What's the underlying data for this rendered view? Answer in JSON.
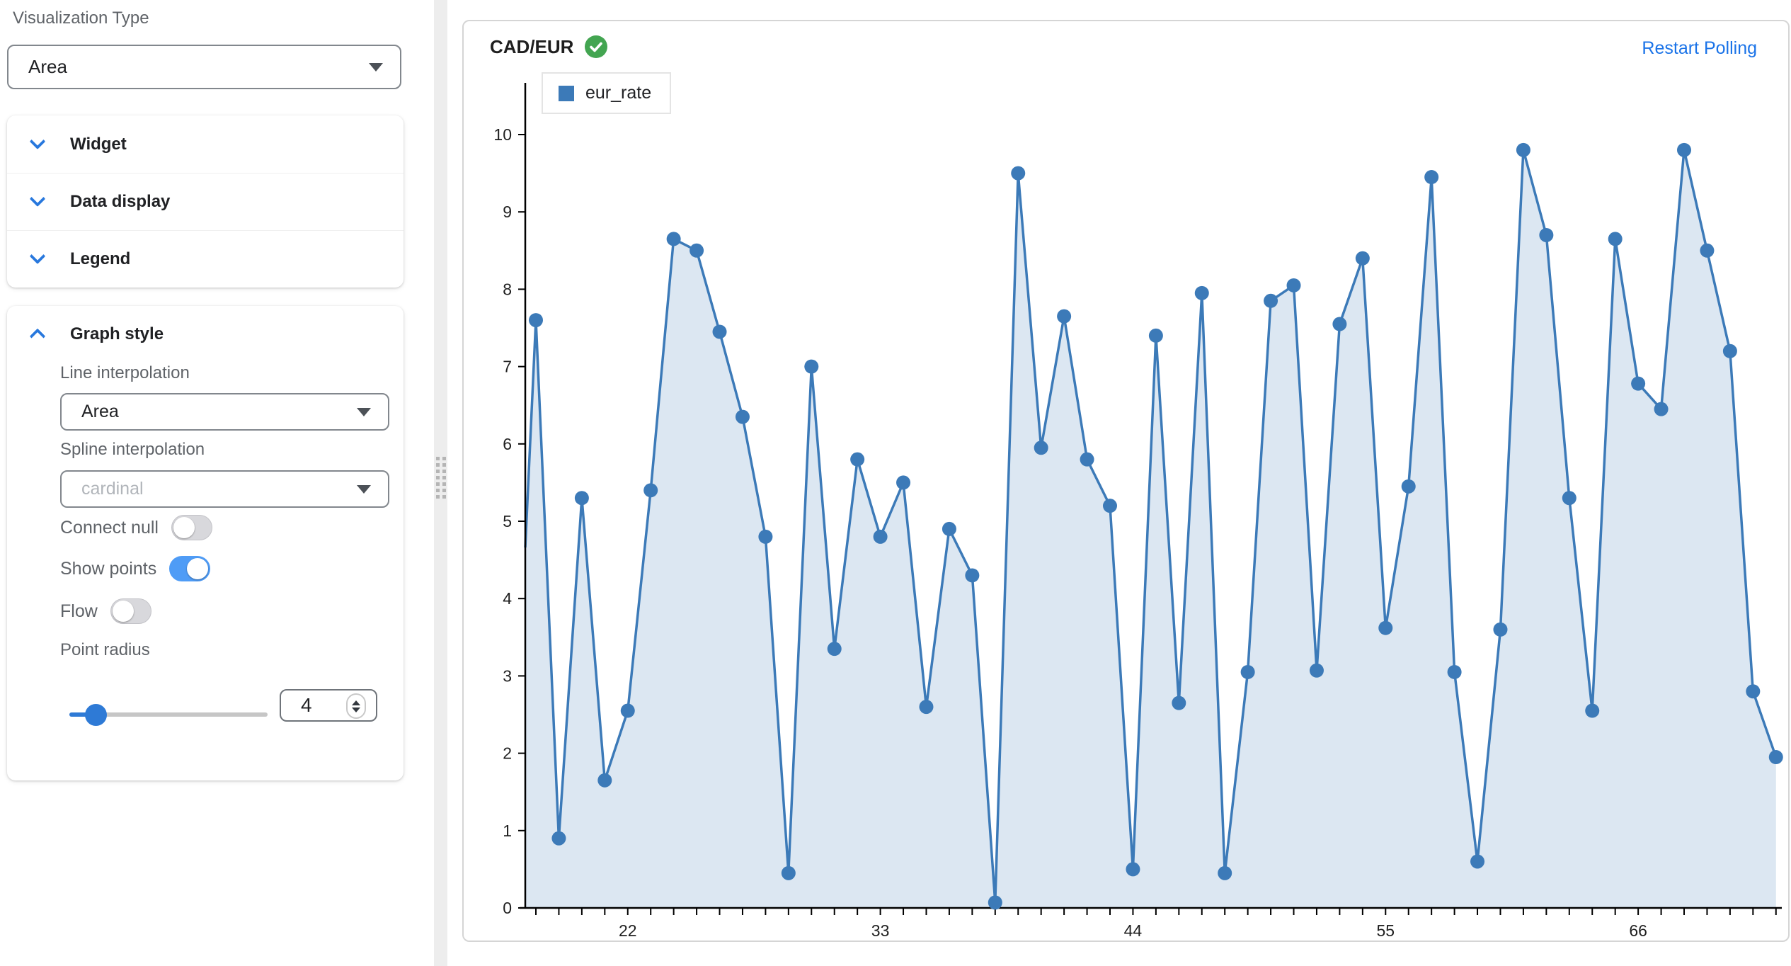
{
  "sidebar": {
    "visualization_type": {
      "label": "Visualization Type",
      "value": "Area"
    },
    "sections": [
      {
        "label": "Widget"
      },
      {
        "label": "Data display"
      },
      {
        "label": "Legend"
      }
    ],
    "graph_style": {
      "title": "Graph style",
      "line_interpolation": {
        "label": "Line interpolation",
        "value": "Area"
      },
      "spline_interpolation": {
        "label": "Spline interpolation",
        "value": "cardinal",
        "disabled": true
      },
      "connect_null": {
        "label": "Connect null",
        "on": false
      },
      "show_points": {
        "label": "Show points",
        "on": true
      },
      "flow": {
        "label": "Flow",
        "on": false
      },
      "point_radius": {
        "label": "Point radius",
        "value": "4"
      }
    }
  },
  "chart_panel": {
    "title": "CAD/EUR",
    "status_icon": "success-check",
    "restart_polling": "Restart Polling",
    "legend": {
      "label": "eur_rate",
      "color": "#3c7ab8"
    }
  },
  "chart_data": {
    "type": "area",
    "series": [
      {
        "name": "eur_rate",
        "values": [
          7.6,
          0.9,
          5.3,
          1.65,
          2.55,
          5.4,
          8.65,
          8.5,
          7.45,
          6.35,
          4.8,
          0.45,
          7.0,
          3.35,
          5.8,
          4.8,
          5.5,
          2.6,
          4.9,
          4.3,
          0.07,
          9.5,
          5.95,
          7.65,
          5.8,
          5.2,
          0.5,
          7.4,
          2.65,
          7.95,
          0.45,
          3.05,
          7.85,
          8.05,
          3.07,
          7.55,
          8.4,
          3.62,
          5.45,
          9.45,
          3.05,
          0.6,
          3.6,
          9.8,
          8.7,
          5.3,
          2.55,
          8.65,
          6.78,
          6.45,
          9.8,
          8.5,
          7.2,
          2.8,
          1.95
        ]
      }
    ],
    "x_start": 18,
    "x_step": 1,
    "x_tick_labels": [
      22,
      33,
      44,
      55,
      66
    ],
    "y_ticks": [
      0,
      1,
      2,
      3,
      4,
      5,
      6,
      7,
      8,
      9,
      10
    ],
    "ylim": [
      0,
      10.7
    ],
    "left_edge_value": 4.66,
    "grid": false,
    "legend_position": "top-left",
    "colors": {
      "line": "#3c7ab8",
      "fill_rgba": "rgba(60,122,184,0.18)",
      "point": "#3c7ab8",
      "axis": "#000000"
    }
  }
}
